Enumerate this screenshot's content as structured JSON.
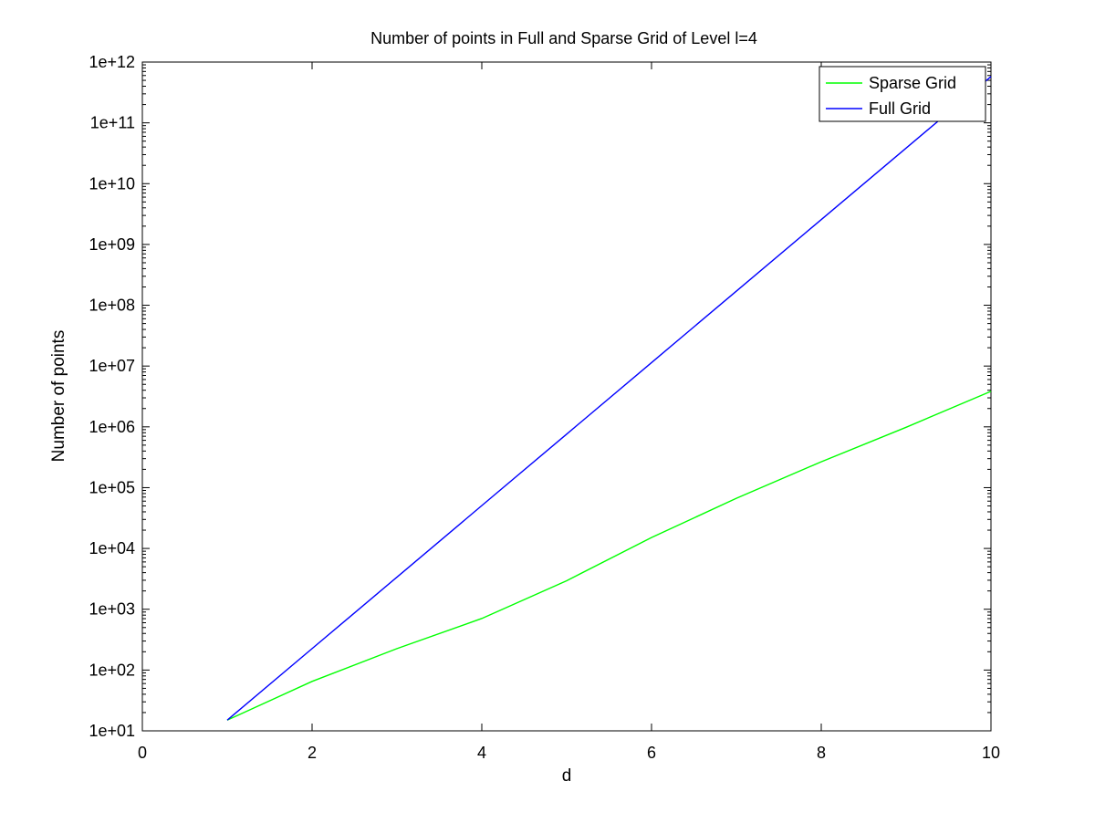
{
  "chart_data": {
    "type": "line",
    "title": "Number of points in Full and Sparse Grid of Level l=4",
    "xlabel": "d",
    "ylabel": "Number of points",
    "xlim": [
      0,
      10
    ],
    "ylim": [
      10,
      1000000000000
    ],
    "yscale": "log",
    "x_ticks": [
      0,
      2,
      4,
      6,
      8,
      10
    ],
    "x_tick_labels": [
      "0",
      "2",
      "4",
      "6",
      "8",
      "10"
    ],
    "y_ticks": [
      10,
      100,
      1000,
      10000,
      100000,
      1000000,
      10000000,
      100000000,
      1000000000,
      10000000000,
      100000000000,
      1000000000000
    ],
    "y_tick_labels": [
      "1e+01",
      "1e+02",
      "1e+03",
      "1e+04",
      "1e+05",
      "1e+06",
      "1e+07",
      "1e+08",
      "1e+09",
      "1e+10",
      "1e+11",
      "1e+12"
    ],
    "grid": false,
    "legend_position": "top-right",
    "x": [
      1,
      2,
      3,
      4,
      5,
      6,
      7,
      8,
      9,
      10
    ],
    "series": [
      {
        "name": "Sparse Grid",
        "color": "#00ff00",
        "values": [
          15,
          65,
          225,
          705,
          2945,
          15105,
          66865,
          266305,
          983745,
          3841025
        ]
      },
      {
        "name": "Full Grid",
        "color": "#0000ff",
        "values": [
          15,
          225,
          3375,
          50625,
          759375,
          11390625,
          170859375,
          2562890625,
          38443359375,
          576650390625
        ]
      }
    ]
  }
}
